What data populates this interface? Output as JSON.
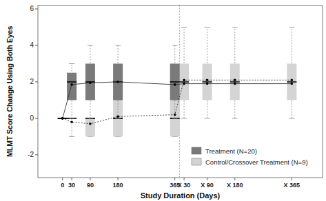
{
  "chart_data": {
    "type": "box",
    "x_label": "Study Duration (Days)",
    "y_label": "MLMT Score Change Using Both Eyes",
    "xlim": [
      -80,
      845
    ],
    "ylim": [
      -3.25,
      6.2
    ],
    "xticks": [
      0,
      30,
      90,
      180,
      365,
      {
        "value": 395,
        "label": "X 30"
      },
      {
        "value": 470,
        "label": "X 90"
      },
      {
        "value": 560,
        "label": "X 180"
      },
      {
        "value": 745,
        "label": "X 365"
      }
    ],
    "yticks": [
      -2,
      0,
      2,
      4,
      6
    ],
    "reference_line": {
      "x": 380
    },
    "legend": "lower right",
    "grid": false,
    "series": [
      {
        "name": "Control/Crossover Treatment (N=9)",
        "color": "#d4d4d4",
        "line_style": "dotted",
        "marker": "circle",
        "x": [
          0,
          30,
          90,
          180,
          365,
          395,
          470,
          560,
          745
        ],
        "min": [
          0,
          -1,
          -1,
          -1,
          -1,
          0,
          0,
          0,
          0
        ],
        "q1": [
          0,
          0,
          -1,
          -1,
          -1,
          1,
          1,
          1,
          1
        ],
        "median": [
          0,
          0,
          0,
          0,
          0,
          2,
          2,
          2,
          2
        ],
        "q3": [
          0,
          0,
          0,
          1,
          1,
          3,
          3,
          3,
          3
        ],
        "max": [
          0,
          0,
          0,
          1,
          1,
          5,
          5,
          5,
          5
        ],
        "mean": [
          0,
          -0.2,
          -0.3,
          0.1,
          0.2,
          2.1,
          2.1,
          2.1,
          2.1
        ]
      },
      {
        "name": "Treatment (N=20)",
        "color": "#7a7a7a",
        "line_style": "solid",
        "marker": "circle",
        "x": [
          0,
          30,
          90,
          180,
          365,
          395,
          470,
          560,
          745
        ],
        "min": [
          0,
          0,
          0,
          0,
          0,
          null,
          null,
          null,
          null
        ],
        "q1": [
          0,
          1,
          1,
          1,
          1,
          null,
          null,
          null,
          null
        ],
        "median": [
          0,
          2,
          2,
          2,
          2,
          null,
          null,
          null,
          null
        ],
        "q3": [
          0,
          2.5,
          3,
          3,
          3,
          null,
          null,
          null,
          null
        ],
        "max": [
          0,
          3,
          4,
          4,
          4,
          null,
          null,
          null,
          null
        ],
        "mean": [
          0,
          1.85,
          1.95,
          2.0,
          1.85,
          1.9,
          1.9,
          1.9,
          1.9
        ]
      }
    ]
  }
}
